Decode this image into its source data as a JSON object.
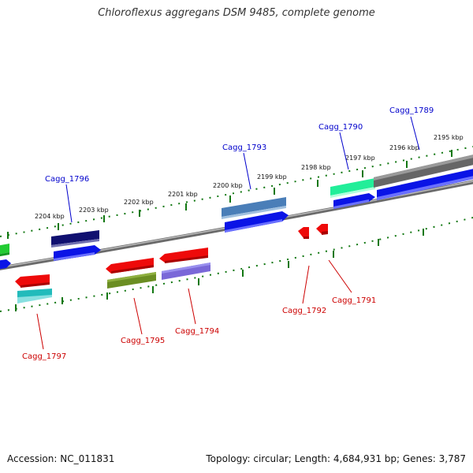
{
  "title": "Chloroflexus aggregans DSM 9485, complete genome",
  "footer": {
    "accession": "Accession: NC_011831",
    "summary": "Topology: circular; Length: 4,684,931 bp; Genes: 3,787"
  },
  "scale_labels": [
    {
      "text": "2204 kbp",
      "kbp": 2204
    },
    {
      "text": "2203 kbp",
      "kbp": 2203
    },
    {
      "text": "2202 kbp",
      "kbp": 2202
    },
    {
      "text": "2201 kbp",
      "kbp": 2201
    },
    {
      "text": "2200 kbp",
      "kbp": 2200
    },
    {
      "text": "2199 kbp",
      "kbp": 2199
    },
    {
      "text": "2198 kbp",
      "kbp": 2198
    },
    {
      "text": "2197 kbp",
      "kbp": 2197
    },
    {
      "text": "2196 kbp",
      "kbp": 2196
    },
    {
      "text": "2195 kbp",
      "kbp": 2195
    }
  ],
  "gene_labels": [
    {
      "text": "Cagg_1789",
      "strand": "plus",
      "color": "#0000cc"
    },
    {
      "text": "Cagg_1790",
      "strand": "plus",
      "color": "#0000cc"
    },
    {
      "text": "Cagg_1793",
      "strand": "plus",
      "color": "#0000cc"
    },
    {
      "text": "Cagg_1796",
      "strand": "plus",
      "color": "#0000cc"
    },
    {
      "text": "Cagg_1791",
      "strand": "minus",
      "color": "#cc0000"
    },
    {
      "text": "Cagg_1792",
      "strand": "minus",
      "color": "#cc0000"
    },
    {
      "text": "Cagg_1794",
      "strand": "minus",
      "color": "#cc0000"
    },
    {
      "text": "Cagg_1795",
      "strand": "minus",
      "color": "#cc0000"
    },
    {
      "text": "Cagg_1797",
      "strand": "minus",
      "color": "#cc0000"
    }
  ],
  "colors": {
    "backbone": "#8a8a8a",
    "scale_ticks": "#117711",
    "plus_label": "#0000cc",
    "minus_label": "#cc0000",
    "cds_blue": "#0a14e6",
    "cds_red": "#ee0a0a"
  }
}
